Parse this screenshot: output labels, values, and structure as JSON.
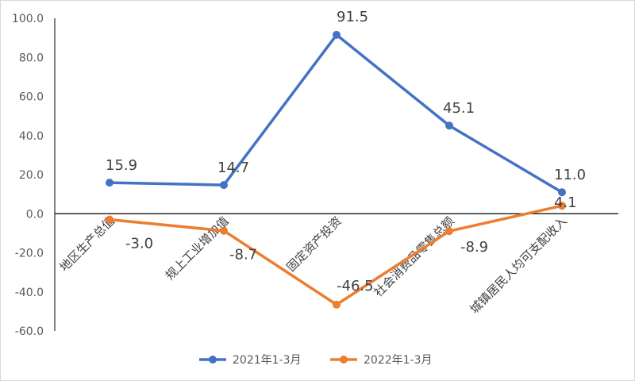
{
  "chart_data": {
    "type": "line",
    "categories": [
      "地区生产总值",
      "规上工业增加值",
      "固定资产投资",
      "社会消费品零售总额",
      "城镇居民人均可支配收入"
    ],
    "series": [
      {
        "name": "2021年1-3月",
        "values": [
          15.9,
          14.7,
          91.5,
          45.1,
          11.0
        ],
        "labels": [
          "15.9",
          "14.7",
          "91.5",
          "45.1",
          "11.0"
        ],
        "color": "#4472c4"
      },
      {
        "name": "2022年1-3月",
        "values": [
          -3.0,
          -8.7,
          -46.5,
          -8.9,
          4.1
        ],
        "labels": [
          "-3.0",
          "-8.7",
          "-46.5",
          "-8.9",
          "4.1"
        ],
        "color": "#ed7d31"
      }
    ],
    "ylim": [
      -60,
      100
    ],
    "yticks": [
      "100.0",
      "80.0",
      "60.0",
      "40.0",
      "20.0",
      "0.0",
      "-20.0",
      "-40.0",
      "-60.0"
    ],
    "ytick_values": [
      100,
      80,
      60,
      40,
      20,
      0,
      -20,
      -40,
      -60
    ],
    "grid": false,
    "legend_position": "bottom",
    "title": "",
    "xlabel": "",
    "ylabel": ""
  }
}
